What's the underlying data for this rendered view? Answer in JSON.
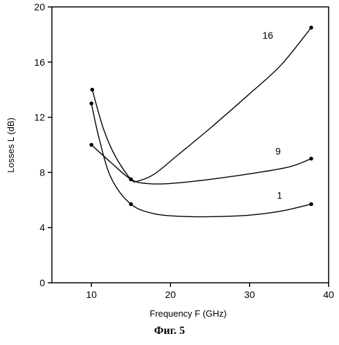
{
  "caption": "Фиг. 5",
  "chart_data": {
    "type": "line",
    "xlabel": "Frequency F (GHz)",
    "ylabel": "Losses L (dB)",
    "xlim": [
      5,
      40
    ],
    "ylim": [
      0,
      20
    ],
    "xticks": [
      10,
      20,
      30,
      40
    ],
    "yticks": [
      0,
      4,
      8,
      12,
      16,
      20
    ],
    "grid": false,
    "series": [
      {
        "name": "16",
        "points": [
          [
            10.1,
            14.0
          ],
          [
            15.0,
            7.5
          ],
          [
            37.8,
            18.5
          ]
        ],
        "curve": [
          [
            10.1,
            14.0
          ],
          [
            11.5,
            11.2
          ],
          [
            13.0,
            9.2
          ],
          [
            15.0,
            7.5
          ],
          [
            16.0,
            7.4
          ],
          [
            18.0,
            7.9
          ],
          [
            21.0,
            9.3
          ],
          [
            25.0,
            11.2
          ],
          [
            30.0,
            13.7
          ],
          [
            34.0,
            15.8
          ],
          [
            37.8,
            18.5
          ]
        ]
      },
      {
        "name": "9",
        "points": [
          [
            10.0,
            10.0
          ],
          [
            15.0,
            7.5
          ],
          [
            37.8,
            9.0
          ]
        ],
        "curve": [
          [
            10.0,
            10.0
          ],
          [
            12.5,
            8.7
          ],
          [
            15.0,
            7.5
          ],
          [
            17.0,
            7.2
          ],
          [
            20.0,
            7.2
          ],
          [
            25.0,
            7.5
          ],
          [
            30.0,
            7.9
          ],
          [
            35.0,
            8.4
          ],
          [
            37.8,
            9.0
          ]
        ]
      },
      {
        "name": "1",
        "points": [
          [
            10.0,
            13.0
          ],
          [
            15.0,
            5.7
          ],
          [
            37.8,
            5.7
          ]
        ],
        "curve": [
          [
            10.0,
            13.0
          ],
          [
            11.0,
            10.4
          ],
          [
            12.5,
            7.6
          ],
          [
            15.0,
            5.7
          ],
          [
            18.0,
            5.0
          ],
          [
            22.0,
            4.8
          ],
          [
            26.0,
            4.8
          ],
          [
            30.0,
            4.9
          ],
          [
            34.0,
            5.2
          ],
          [
            37.8,
            5.7
          ]
        ]
      }
    ],
    "series_label_anchors": [
      [
        32.3,
        17.7
      ],
      [
        33.6,
        9.3
      ],
      [
        33.8,
        6.1
      ]
    ]
  }
}
